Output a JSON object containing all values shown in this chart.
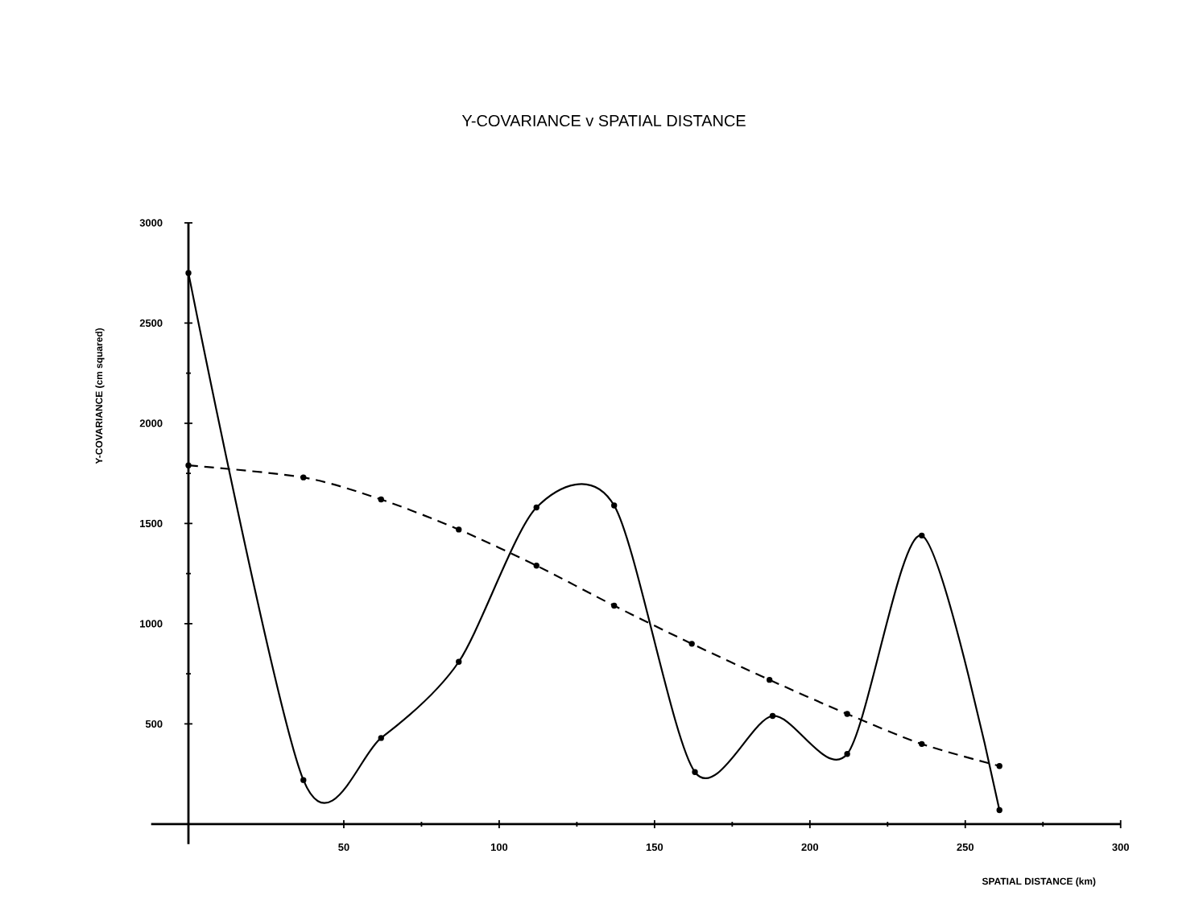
{
  "chart_data": {
    "type": "line",
    "title": "Y-COVARIANCE v SPATIAL DISTANCE",
    "xlabel": "SPATIAL DISTANCE (km)",
    "ylabel": "Y-COVARIANCE (cm squared)",
    "xlim": [
      -12,
      300
    ],
    "ylim": [
      -100,
      3000
    ],
    "xticks": [
      50,
      100,
      150,
      200,
      250,
      300
    ],
    "yticks": [
      500,
      1000,
      1500,
      2000,
      2500,
      3000
    ],
    "marker": "circle",
    "series": [
      {
        "color": "#000000",
        "line_style": "solid",
        "x": [
          0,
          37,
          62,
          87,
          112,
          137,
          163,
          188,
          212,
          236,
          261
        ],
        "values": [
          2750,
          220,
          430,
          810,
          1580,
          1590,
          260,
          540,
          350,
          1440,
          70
        ]
      },
      {
        "color": "#000000",
        "line_style": "dashed",
        "x": [
          0,
          37,
          62,
          87,
          112,
          137,
          162,
          187,
          212,
          236,
          261
        ],
        "values": [
          1790,
          1730,
          1620,
          1470,
          1290,
          1090,
          900,
          720,
          550,
          400,
          290
        ]
      }
    ]
  }
}
